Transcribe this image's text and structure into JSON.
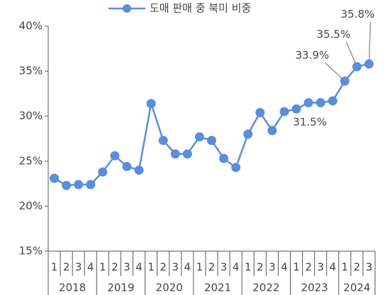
{
  "chart_data": {
    "type": "line",
    "legend": "top",
    "categories": [
      "1",
      "2",
      "3",
      "4",
      "1",
      "2",
      "3",
      "4",
      "1",
      "2",
      "3",
      "4",
      "1",
      "2",
      "3",
      "4",
      "1",
      "2",
      "3",
      "4",
      "1",
      "2",
      "3",
      "4",
      "1",
      "2",
      "3"
    ],
    "years": [
      "2018",
      "2019",
      "2020",
      "2021",
      "2022",
      "2023",
      "2024"
    ],
    "series": [
      {
        "name": "도매 판매 중 북미 비중",
        "color": "#5b8ed8",
        "values": [
          23.1,
          22.3,
          22.4,
          22.4,
          23.8,
          25.6,
          24.4,
          24.0,
          31.4,
          27.3,
          25.8,
          25.8,
          27.7,
          27.3,
          25.3,
          24.3,
          28.0,
          30.4,
          28.4,
          30.5,
          30.8,
          31.5,
          31.5,
          31.7,
          33.9,
          35.5,
          35.8
        ],
        "value_labels": [
          null,
          null,
          null,
          null,
          null,
          null,
          null,
          null,
          null,
          null,
          null,
          null,
          null,
          null,
          null,
          null,
          null,
          null,
          null,
          null,
          null,
          "31.5%",
          null,
          null,
          "33.9%",
          "35.5%",
          "35.8%"
        ]
      }
    ],
    "ylim": [
      15,
      40
    ],
    "yticks": [
      {
        "value": 15,
        "label": "15%"
      },
      {
        "value": 20,
        "label": "20%"
      },
      {
        "value": 25,
        "label": "25%"
      },
      {
        "value": 30,
        "label": "30%"
      },
      {
        "value": 35,
        "label": "35%"
      },
      {
        "value": 40,
        "label": "40%"
      }
    ]
  }
}
